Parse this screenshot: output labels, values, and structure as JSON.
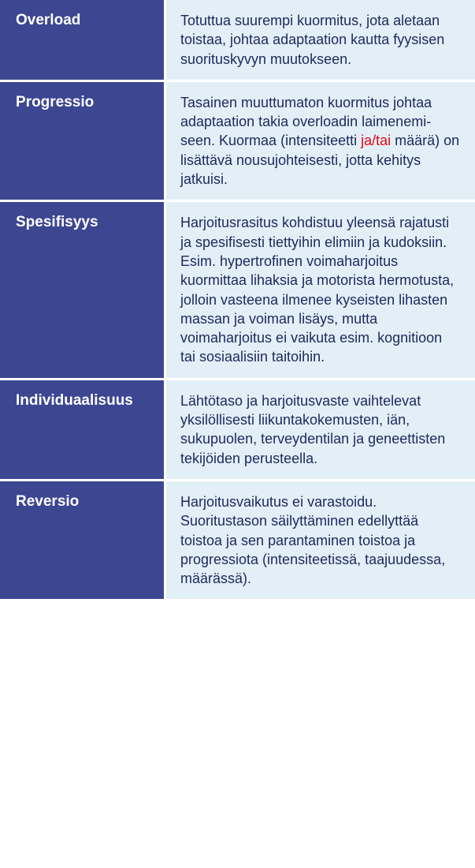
{
  "table": {
    "term_bg": "#3d4691",
    "term_color": "#ffffff",
    "def_bg": "#e3eff6",
    "def_color": "#1f2a60",
    "highlight_color": "#e30613",
    "rows": [
      {
        "term": "Overload",
        "def_parts": [
          {
            "text": "Totuttua suurempi kuormitus, jota aletaan toistaa, johtaa adaptaation kautta fyysisen suorituskyvyn muutokseen.",
            "hl": false
          }
        ]
      },
      {
        "term": "Progressio",
        "def_parts": [
          {
            "text": "Tasainen muuttumaton kuormitus johtaa adaptaation takia overloadin laimenemi­seen. Kuormaa (intensiteetti ",
            "hl": false
          },
          {
            "text": "ja/tai",
            "hl": true
          },
          {
            "text": " määrä) on lisättävä nousu­johteisesti, jotta kehitys jatkuisi.",
            "hl": false
          }
        ]
      },
      {
        "term": "Spesifisyys",
        "def_parts": [
          {
            "text": "Harjoitusrasitus kohdistuu yleensä rajatusti ja spesifisesti tiettyihin elimiin ja kudoksiin. Esim. hypertrofinen voima­harjoitus kuormittaa lihaksia ja motorista hermotusta, jolloin vasteena ilmenee kyseisten lihasten massan ja voiman lisäys, mutta voimaharjoitus ei vaikuta esim. kognitioon tai sosiaalisiin taitoihin.",
            "hl": false
          }
        ]
      },
      {
        "term": "Individuaalisuus",
        "def_parts": [
          {
            "text": "Lähtötaso ja harjoitusvaste vaihtelevat yksilöllisesti liikunta­kokemusten, iän, sukupuolen, terveydentilan ja geneettisten tekijöiden perusteella.",
            "hl": false
          }
        ]
      },
      {
        "term": "Reversio",
        "def_parts": [
          {
            "text": "Harjoitusvaikutus ei varastoidu. Suoritustason säilyttäminen edellyttää toistoa ja sen parantaminen toistoa ja progressiota (intensiteetissä, taajuudessa, määrässä).",
            "hl": false
          }
        ]
      }
    ]
  }
}
